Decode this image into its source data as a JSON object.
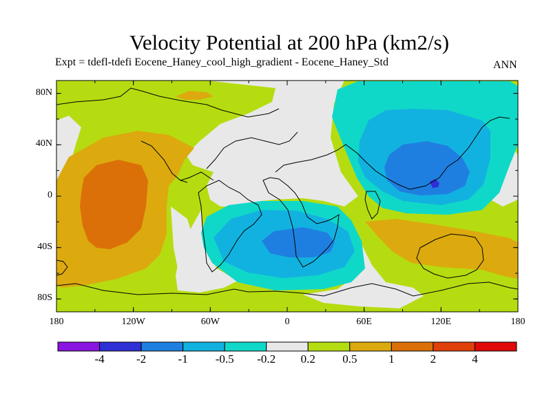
{
  "title": "Velocity Potential at 200 hPa (km2/s)",
  "subtitle": "Expt = tdefl-tdefi  Eocene_Haney_cool_high_gradient - Eocene_Haney_Std",
  "season": "ANN",
  "lat_ticks": [
    {
      "label": "80N",
      "lat": 80
    },
    {
      "label": "40N",
      "lat": 40
    },
    {
      "label": "0",
      "lat": 0
    },
    {
      "label": "40S",
      "lat": -40
    },
    {
      "label": "80S",
      "lat": -80
    }
  ],
  "lon_ticks": [
    {
      "label": "180",
      "lon": -180
    },
    {
      "label": "120W",
      "lon": -120
    },
    {
      "label": "60W",
      "lon": -60
    },
    {
      "label": "0",
      "lon": 0
    },
    {
      "label": "60E",
      "lon": 60
    },
    {
      "label": "120E",
      "lon": 120
    },
    {
      "label": "180",
      "lon": 180
    }
  ],
  "colorbar": {
    "colors": [
      "#8a15e0",
      "#2f2fd6",
      "#1f7fe0",
      "#12b2e0",
      "#10d8c8",
      "#e8e8e8",
      "#b5dc10",
      "#dcaa0e",
      "#dc7008",
      "#e0400a",
      "#e00a0a"
    ],
    "labels": [
      "-4",
      "-2",
      "-1",
      "-0.5",
      "-0.2",
      "0.2",
      "0.5",
      "1",
      "2",
      "4"
    ]
  },
  "colors": {
    "pos_light": "#b5dc10",
    "pos_mid": "#dcaa0e",
    "pos_strong": "#dc7008",
    "neutral": "#e8e8e8",
    "neg_light": "#10d8c8",
    "neg_mid": "#12b2e0",
    "neg_strong": "#1f7fe0",
    "neg_extreme": "#2f2fd6"
  }
}
